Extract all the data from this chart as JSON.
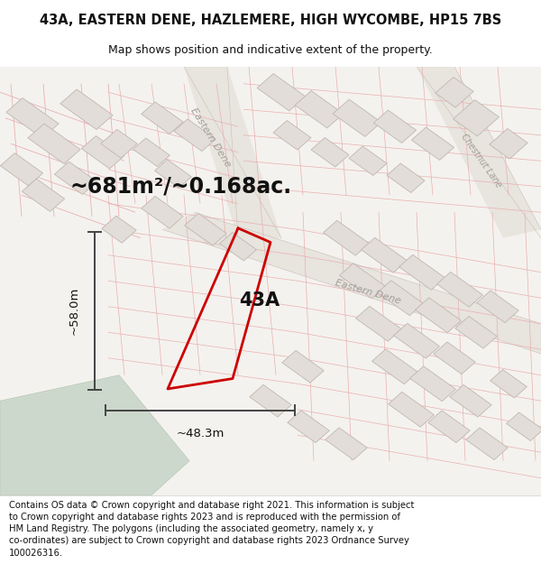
{
  "title_line1": "43A, EASTERN DENE, HAZLEMERE, HIGH WYCOMBE, HP15 7BS",
  "title_line2": "Map shows position and indicative extent of the property.",
  "area_text": "~681m²/~0.168ac.",
  "label_43A": "43A",
  "dim_width": "~48.3m",
  "dim_height": "~58.0m",
  "road_label1": "Eastern Dene",
  "road_label2": "Eastern Dene",
  "road_label3": "Chestnut Lane",
  "footer": "Contains OS data © Crown copyright and database right 2021. This information is subject to Crown copyright and database rights 2023 and is reproduced with the permission of HM Land Registry. The polygons (including the associated geometry, namely x, y co-ordinates) are subject to Crown copyright and database rights 2023 Ordnance Survey 100026316.",
  "map_bg": "#f5f3f0",
  "road_fill": "#e8e4de",
  "building_fill": "#e0dbd4",
  "building_edge": "#c8c0b8",
  "cadastral_color": "#e8b0b0",
  "red_line_color": "#cc0000",
  "green_area": "#cdd8cc",
  "title_fontsize": 10.5,
  "subtitle_fontsize": 9,
  "area_fontsize": 17,
  "label_fontsize": 15,
  "dim_fontsize": 9.5,
  "footer_fontsize": 7.2,
  "road_label_fontsize": 8,
  "road_color_text": "#999990"
}
